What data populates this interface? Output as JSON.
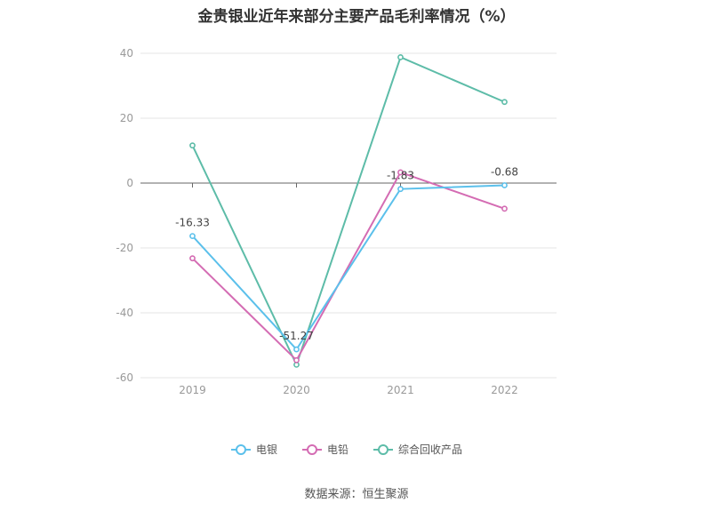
{
  "chart_data": {
    "type": "line",
    "title": "金贵银业近年来部分主要产品毛利率情况（%）",
    "categories": [
      "2019",
      "2020",
      "2021",
      "2022"
    ],
    "ylim": [
      -60,
      40
    ],
    "yticks": [
      40,
      20,
      0,
      -20,
      -40,
      -60
    ],
    "grid": true,
    "legend_position": "bottom",
    "series": [
      {
        "name": "电银",
        "color": "#5bc0eb",
        "values": [
          -16.33,
          -51.27,
          -1.83,
          -0.68
        ],
        "labels": [
          "-16.33",
          "-51.27",
          "-1.83",
          "-0.68"
        ]
      },
      {
        "name": "电铅",
        "color": "#d46cb3",
        "values": [
          -23.2,
          -54.6,
          3.3,
          -7.9
        ]
      },
      {
        "name": "综合回收产品",
        "color": "#5dbca8",
        "values": [
          11.6,
          -56.0,
          38.8,
          25.0
        ]
      }
    ]
  },
  "source": "数据来源：恒生聚源"
}
